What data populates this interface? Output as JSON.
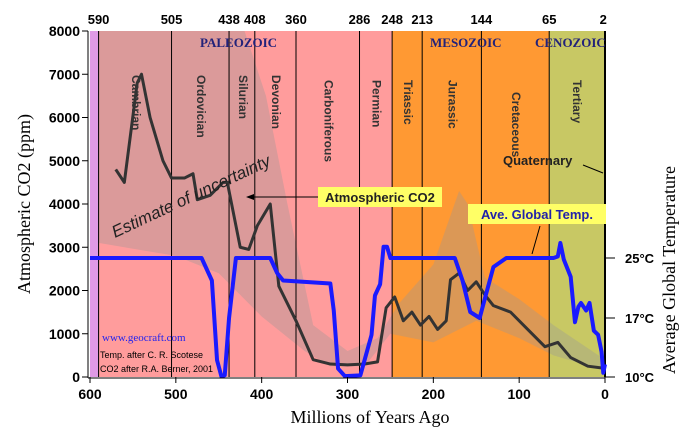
{
  "chart_data": {
    "type": "line",
    "xlabel": "Millions of Years Ago",
    "ylabel": "Atmospheric CO2 (ppm)",
    "y2label": "Average Global Temperature",
    "xlim": [
      600,
      0
    ],
    "ylim": [
      0,
      8000
    ],
    "x_ticks": [
      600,
      500,
      400,
      300,
      200,
      100,
      0
    ],
    "y_ticks": [
      0,
      1000,
      2000,
      3000,
      4000,
      5000,
      6000,
      7000,
      8000
    ],
    "y2_ticks": [
      {
        "value": 25,
        "label": "25°C"
      },
      {
        "value": 17,
        "label": "17°C"
      },
      {
        "value": 10,
        "label": "10°C"
      }
    ],
    "top_ticks": [
      590,
      505,
      438,
      408,
      360,
      286,
      248,
      213,
      144,
      65,
      2
    ],
    "eras": [
      {
        "name": "PALEOZOIC",
        "start": 590,
        "end": 248,
        "color": "#ff9c9c"
      },
      {
        "name": "MESOZOIC",
        "start": 248,
        "end": 65,
        "color": "#ff9933"
      },
      {
        "name": "CENOZOIC",
        "start": 65,
        "end": 0,
        "color": "#c8c864"
      }
    ],
    "precambrian_color": "#e09ae6",
    "periods": [
      {
        "name": "Cambrian",
        "start": 590,
        "end": 505
      },
      {
        "name": "Ordovician",
        "start": 505,
        "end": 438
      },
      {
        "name": "Silurian",
        "start": 438,
        "end": 408
      },
      {
        "name": "Devonian",
        "start": 408,
        "end": 360
      },
      {
        "name": "Carboniferous",
        "start": 360,
        "end": 286
      },
      {
        "name": "Permian",
        "start": 286,
        "end": 248
      },
      {
        "name": "Triassic",
        "start": 248,
        "end": 213
      },
      {
        "name": "Jurassic",
        "start": 213,
        "end": 144
      },
      {
        "name": "Cretaceous",
        "start": 144,
        "end": 65
      },
      {
        "name": "Tertiary",
        "start": 65,
        "end": 2
      }
    ],
    "series": [
      {
        "name": "Atmospheric CO2",
        "axis": "ppm",
        "color": "#333333",
        "x": [
          570,
          560,
          545,
          540,
          530,
          515,
          505,
          490,
          480,
          475,
          460,
          445,
          440,
          425,
          415,
          405,
          390,
          380,
          360,
          340,
          320,
          300,
          280,
          265,
          255,
          245,
          235,
          225,
          215,
          205,
          195,
          185,
          180,
          170,
          160,
          150,
          140,
          130,
          110,
          90,
          70,
          55,
          40,
          20,
          0
        ],
        "y": [
          4800,
          4500,
          6800,
          7000,
          6000,
          5000,
          4600,
          4600,
          4700,
          4100,
          4200,
          4500,
          4500,
          3000,
          2950,
          3500,
          4000,
          2100,
          1300,
          400,
          300,
          280,
          300,
          350,
          1600,
          1850,
          1300,
          1500,
          1200,
          1400,
          1100,
          1300,
          2250,
          2400,
          2000,
          2200,
          1900,
          1650,
          1500,
          1100,
          700,
          800,
          450,
          250,
          200
        ]
      },
      {
        "name": "Ave. Global Temp.",
        "axis": "°C",
        "color": "#1a1aff",
        "x": [
          600,
          470,
          458,
          452,
          447,
          443,
          438,
          430,
          390,
          382,
          375,
          320,
          316,
          311,
          303,
          285,
          272,
          268,
          262,
          258,
          254,
          250,
          175,
          166,
          157,
          146,
          139,
          130,
          115,
          100,
          60,
          55,
          52,
          48,
          40,
          35,
          31,
          28,
          22,
          18,
          13,
          8,
          4,
          2,
          0
        ],
        "y": [
          25,
          25,
          22,
          12,
          10.1,
          10.2,
          17,
          25,
          25,
          23,
          22,
          21.6,
          18,
          11,
          10.1,
          10.2,
          15,
          20,
          21.5,
          26.5,
          26.5,
          25,
          25,
          22,
          17.8,
          17,
          20,
          23.8,
          25,
          25,
          25,
          25.2,
          27,
          24.8,
          22.5,
          16.5,
          18.5,
          19,
          18,
          19,
          15.5,
          15,
          13,
          10.5,
          11.5
        ]
      }
    ],
    "uncertainty_band": {
      "upper": {
        "x": [
          590,
          420,
          395,
          370,
          340,
          300,
          265,
          240,
          200,
          170,
          160,
          140,
          100,
          60,
          0
        ],
        "y": [
          8000,
          8000,
          6500,
          4000,
          1200,
          600,
          900,
          1700,
          2600,
          4300,
          4000,
          2300,
          1800,
          1200,
          400
        ]
      },
      "lower": {
        "x": [
          0,
          60,
          100,
          150,
          200,
          250,
          280,
          320,
          350,
          400,
          450,
          500,
          590
        ],
        "y": [
          150,
          500,
          900,
          1300,
          800,
          1000,
          250,
          250,
          600,
          1400,
          2400,
          2800,
          3100
        ]
      }
    },
    "annotations": {
      "uncertainty": "Estimate of uncertainty",
      "co2_label": "Atmospheric CO2",
      "temp_label": "Ave. Global Temp.",
      "quaternary": "Quaternary",
      "website": "www.geocraft.com",
      "credit_temp": "Temp. after C. R. Scotese",
      "credit_co2": "CO2 after R.A. Berner, 2001"
    }
  }
}
